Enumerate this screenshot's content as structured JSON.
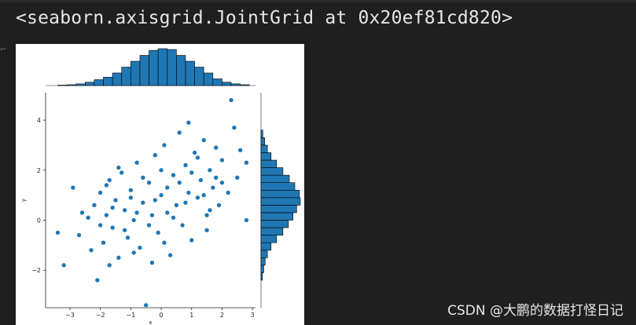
{
  "cell_output": {
    "repr_text": "<seaborn.axisgrid.JointGrid at 0x20ef81cd820>"
  },
  "watermark": "CSDN @大鹏的数据打怪日记",
  "colors": {
    "background": "#1f1f1f",
    "plot_face": "#ffffff",
    "series": "#1f77b4",
    "edge": "#000000"
  },
  "chart_data": {
    "type": "scatter",
    "title": "",
    "xlabel": "x",
    "ylabel": "y",
    "xlim": [
      -3.8,
      3.1
    ],
    "ylim": [
      -3.5,
      5.1
    ],
    "xticks": [
      -3,
      -2,
      -1,
      0,
      1,
      2,
      3
    ],
    "yticks": [
      -2,
      0,
      2,
      4
    ],
    "xtick_labels": [
      "−3",
      "−2",
      "−1",
      "0",
      "1",
      "2",
      "3"
    ],
    "ytick_labels": [
      "−2",
      "0",
      "2",
      "4"
    ],
    "grid": false,
    "marginals": {
      "x_hist": {
        "bin_edges": [
          -3.4,
          -3.1,
          -2.8,
          -2.5,
          -2.2,
          -1.9,
          -1.6,
          -1.3,
          -1.0,
          -0.7,
          -0.4,
          -0.1,
          0.2,
          0.5,
          0.8,
          1.1,
          1.4,
          1.7,
          2.0,
          2.3,
          2.6,
          2.9
        ],
        "counts": [
          1,
          2,
          4,
          8,
          14,
          20,
          30,
          44,
          58,
          72,
          84,
          88,
          86,
          72,
          58,
          44,
          30,
          16,
          8,
          4,
          2
        ]
      },
      "y_hist": {
        "bin_edges": [
          -2.4,
          -2.1,
          -1.8,
          -1.5,
          -1.2,
          -0.9,
          -0.6,
          -0.3,
          0.0,
          0.3,
          0.6,
          0.9,
          1.2,
          1.5,
          1.8,
          2.1,
          2.4,
          2.7,
          3.0,
          3.3,
          3.6
        ],
        "counts": [
          3,
          6,
          9,
          14,
          22,
          34,
          48,
          60,
          70,
          78,
          86,
          84,
          74,
          62,
          48,
          34,
          22,
          14,
          8,
          4
        ]
      }
    },
    "series": [
      {
        "points": [
          [
            -3.4,
            -0.5
          ],
          [
            -3.2,
            -1.8
          ],
          [
            -2.9,
            1.3
          ],
          [
            -2.7,
            -0.6
          ],
          [
            -2.6,
            0.3
          ],
          [
            -2.3,
            -1.2
          ],
          [
            -2.2,
            0.6
          ],
          [
            -2.1,
            -2.4
          ],
          [
            -2.0,
            1.1
          ],
          [
            -1.9,
            -0.9
          ],
          [
            -1.8,
            0.2
          ],
          [
            -1.7,
            1.6
          ],
          [
            -1.6,
            -0.3
          ],
          [
            -1.5,
            0.8
          ],
          [
            -1.4,
            -1.5
          ],
          [
            -1.3,
            1.9
          ],
          [
            -1.2,
            0.4
          ],
          [
            -1.1,
            -0.7
          ],
          [
            -1.0,
            1.2
          ],
          [
            -0.9,
            0.0
          ],
          [
            -0.8,
            2.3
          ],
          [
            -0.7,
            -1.1
          ],
          [
            -0.6,
            0.7
          ],
          [
            -0.5,
            -3.4
          ],
          [
            -0.4,
            1.5
          ],
          [
            -0.3,
            0.2
          ],
          [
            -0.2,
            2.6
          ],
          [
            -0.1,
            -0.5
          ],
          [
            0.0,
            1.0
          ],
          [
            0.1,
            3.0
          ],
          [
            0.2,
            0.3
          ],
          [
            0.3,
            -1.4
          ],
          [
            0.4,
            1.8
          ],
          [
            0.5,
            0.6
          ],
          [
            0.6,
            3.5
          ],
          [
            0.7,
            -0.2
          ],
          [
            0.8,
            2.2
          ],
          [
            0.9,
            1.1
          ],
          [
            1.0,
            -0.8
          ],
          [
            1.1,
            2.7
          ],
          [
            1.2,
            0.9
          ],
          [
            1.3,
            1.6
          ],
          [
            1.4,
            3.2
          ],
          [
            1.5,
            0.2
          ],
          [
            1.6,
            2.0
          ],
          [
            1.7,
            1.3
          ],
          [
            1.8,
            2.9
          ],
          [
            1.9,
            0.6
          ],
          [
            2.0,
            2.4
          ],
          [
            2.2,
            1.1
          ],
          [
            2.3,
            4.8
          ],
          [
            2.4,
            3.7
          ],
          [
            2.5,
            1.7
          ],
          [
            2.6,
            2.8
          ],
          [
            2.8,
            0.0
          ],
          [
            2.8,
            2.3
          ],
          [
            -2.4,
            0.1
          ],
          [
            -2.0,
            -0.2
          ],
          [
            -1.8,
            1.4
          ],
          [
            -1.6,
            0.5
          ],
          [
            -1.4,
            2.1
          ],
          [
            -1.2,
            -0.4
          ],
          [
            -1.0,
            0.9
          ],
          [
            -0.8,
            0.3
          ],
          [
            -0.6,
            1.7
          ],
          [
            -0.4,
            -0.2
          ],
          [
            -0.2,
            0.8
          ],
          [
            0.0,
            2.0
          ],
          [
            0.2,
            1.3
          ],
          [
            0.4,
            0.1
          ],
          [
            0.6,
            1.5
          ],
          [
            0.8,
            0.7
          ],
          [
            1.0,
            1.9
          ],
          [
            1.2,
            2.5
          ],
          [
            1.4,
            1.0
          ],
          [
            1.6,
            0.4
          ],
          [
            1.8,
            1.7
          ],
          [
            2.0,
            1.5
          ],
          [
            0.9,
            3.9
          ],
          [
            -1.7,
            -1.8
          ],
          [
            -0.3,
            -1.7
          ],
          [
            0.1,
            -0.9
          ],
          [
            -0.9,
            -1.3
          ],
          [
            1.5,
            -0.4
          ]
        ]
      }
    ]
  }
}
